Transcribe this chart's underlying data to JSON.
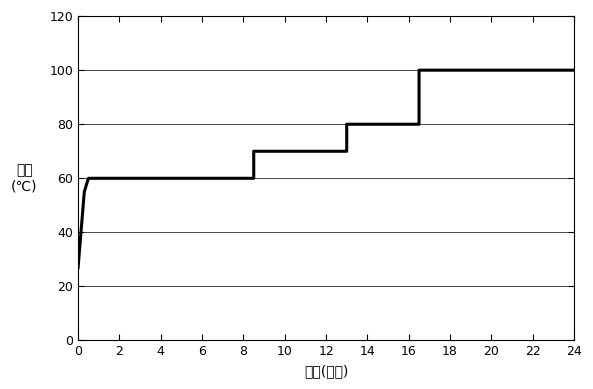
{
  "x": [
    0,
    0.3,
    0.5,
    8.5,
    8.5,
    13,
    13,
    16.5,
    16.5,
    24
  ],
  "y": [
    27,
    55,
    60,
    60,
    70,
    70,
    80,
    80,
    100,
    100
  ],
  "xlim": [
    0,
    24
  ],
  "ylim": [
    0,
    120
  ],
  "xticks": [
    0,
    2,
    4,
    6,
    8,
    10,
    12,
    14,
    16,
    18,
    20,
    22,
    24
  ],
  "yticks": [
    0,
    20,
    40,
    60,
    80,
    100,
    120
  ],
  "xlabel": "时间(小时)",
  "ylabel": "温度\n(℃)",
  "line_color": "#000000",
  "line_width": 2.2,
  "bg_color": "#ffffff",
  "grid_color": "#000000",
  "grid_linewidth": 0.5,
  "tick_fontsize": 9,
  "label_fontsize": 10,
  "all_spines": true
}
